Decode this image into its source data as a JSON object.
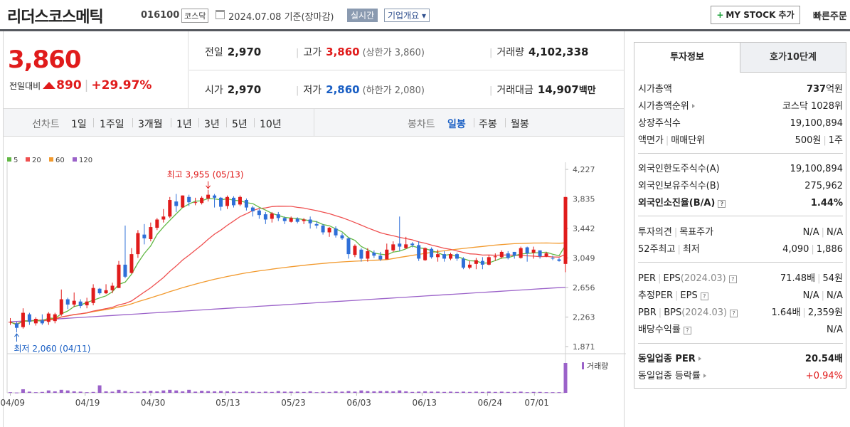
{
  "header": {
    "name": "리더스코스메틱",
    "code": "016100",
    "market": "코스닥",
    "date": "2024.07.08 기준(장마감)",
    "realtime": "실시간",
    "corp_info": "기업개요",
    "corp_info_arrow": "▾",
    "mystock_plus": "+",
    "mystock": "MY STOCK 추가",
    "quick_order": "빠른주문"
  },
  "quote": {
    "price": "3,860",
    "change_label": "전일대비",
    "change": "890",
    "change_rate": "+29.97%",
    "sep": "|"
  },
  "stats": {
    "prev": {
      "label": "전일",
      "value": "2,970"
    },
    "open": {
      "label": "시가",
      "value": "2,970"
    },
    "high": {
      "label": "고가",
      "value": "3,860",
      "sub": "(상한가 3,860)"
    },
    "low": {
      "label": "저가",
      "value": "2,860",
      "sub": "(하한가 2,080)"
    },
    "volume": {
      "label": "거래량",
      "value": "4,102,338"
    },
    "amount": {
      "label": "거래대금",
      "value": "14,907",
      "unit": "백만"
    }
  },
  "line_tabs": {
    "label": "선차트",
    "items": [
      "1일",
      "1주일",
      "3개월",
      "1년",
      "3년",
      "5년",
      "10년"
    ]
  },
  "candle_tabs": {
    "label": "봉차트",
    "items": [
      "일봉",
      "주봉",
      "월봉"
    ],
    "active": "일봉"
  },
  "chart_data": {
    "type": "candlestick",
    "legend": [
      {
        "name": "5",
        "color": "#62b845"
      },
      {
        "name": "20",
        "color": "#ef5050"
      },
      {
        "name": "60",
        "color": "#f29a2e"
      },
      {
        "name": "120",
        "color": "#9b62c9"
      }
    ],
    "y_ticks": [
      "4,227",
      "3,835",
      "3,442",
      "3,049",
      "2,656",
      "2,263",
      "1,871"
    ],
    "ylim": [
      1871,
      4227
    ],
    "x_ticks": [
      "04/09",
      "04/19",
      "04/30",
      "05/13",
      "05/23",
      "06/03",
      "06/13",
      "06/24",
      "07/01"
    ],
    "high_annotation": "최고 3,955 (05/13)",
    "low_annotation": "최저 2,060 (04/11)",
    "volume_label": "거래량",
    "colors": {
      "up": "#e01b1b",
      "down": "#2f6fd8"
    },
    "candles": [
      [
        2200,
        2200,
        2160,
        2250
      ],
      [
        2180,
        2120,
        2060,
        2200
      ],
      [
        2130,
        2320,
        2110,
        2380
      ],
      [
        2300,
        2200,
        2160,
        2320
      ],
      [
        2180,
        2240,
        2150,
        2260
      ],
      [
        2220,
        2180,
        2160,
        2300
      ],
      [
        2200,
        2310,
        2160,
        2330
      ],
      [
        2210,
        2300,
        2180,
        2320
      ],
      [
        2300,
        2500,
        2280,
        2630
      ],
      [
        2500,
        2430,
        2370,
        2520
      ],
      [
        2430,
        2480,
        2400,
        2590
      ],
      [
        2470,
        2410,
        2380,
        2500
      ],
      [
        2420,
        2470,
        2380,
        2520
      ],
      [
        2450,
        2650,
        2420,
        2700
      ],
      [
        2640,
        2580,
        2560,
        2650
      ],
      [
        2580,
        2620,
        2570,
        2700
      ],
      [
        2620,
        2680,
        2580,
        2720
      ],
      [
        2650,
        2960,
        2650,
        3010
      ],
      [
        2960,
        2800,
        2780,
        3480
      ],
      [
        2850,
        3100,
        2840,
        3180
      ],
      [
        3100,
        3380,
        3050,
        3420
      ],
      [
        3360,
        3310,
        3230,
        3500
      ],
      [
        3300,
        3460,
        3270,
        3520
      ],
      [
        3450,
        3560,
        3420,
        3580
      ],
      [
        3560,
        3600,
        3520,
        3700
      ],
      [
        3600,
        3820,
        3580,
        3860
      ],
      [
        3800,
        3740,
        3660,
        3900
      ],
      [
        3720,
        3880,
        3720,
        3880
      ],
      [
        3860,
        3790,
        3740,
        3890
      ],
      [
        3790,
        3790,
        3750,
        3850
      ],
      [
        3780,
        3850,
        3760,
        3870
      ],
      [
        3840,
        3890,
        3800,
        3955
      ],
      [
        3880,
        3850,
        3720,
        3900
      ],
      [
        3850,
        3730,
        3680,
        3860
      ],
      [
        3740,
        3860,
        3700,
        3880
      ],
      [
        3850,
        3750,
        3720,
        3870
      ],
      [
        3760,
        3860,
        3740,
        3880
      ],
      [
        3820,
        3720,
        3680,
        3840
      ],
      [
        3720,
        3670,
        3600,
        3740
      ],
      [
        3680,
        3620,
        3570,
        3700
      ],
      [
        3630,
        3560,
        3500,
        3660
      ],
      [
        3570,
        3640,
        3520,
        3660
      ],
      [
        3630,
        3580,
        3540,
        3660
      ],
      [
        3580,
        3540,
        3500,
        3600
      ],
      [
        3530,
        3580,
        3520,
        3600
      ],
      [
        3570,
        3530,
        3510,
        3590
      ],
      [
        3540,
        3560,
        3500,
        3580
      ],
      [
        3560,
        3510,
        3440,
        3600
      ],
      [
        3500,
        3480,
        3440,
        3540
      ],
      [
        3480,
        3390,
        3360,
        3500
      ],
      [
        3390,
        3450,
        3330,
        3460
      ],
      [
        3440,
        3350,
        3320,
        3470
      ],
      [
        3350,
        3310,
        3290,
        3380
      ],
      [
        3310,
        3100,
        3040,
        3320
      ],
      [
        3090,
        3210,
        3060,
        3230
      ],
      [
        3160,
        3040,
        3000,
        3180
      ],
      [
        3040,
        3140,
        3000,
        3180
      ],
      [
        3120,
        3080,
        3050,
        3150
      ],
      [
        3080,
        3030,
        3010,
        3130
      ],
      [
        3030,
        3160,
        3030,
        3240
      ],
      [
        3150,
        3230,
        3130,
        3270
      ],
      [
        3240,
        3200,
        3140,
        3600
      ],
      [
        3180,
        3230,
        3170,
        3330
      ],
      [
        3240,
        3220,
        3190,
        3260
      ],
      [
        3220,
        3040,
        3010,
        3270
      ],
      [
        3020,
        3180,
        3010,
        3190
      ],
      [
        3170,
        3060,
        3040,
        3190
      ],
      [
        3060,
        3100,
        3000,
        3160
      ],
      [
        3100,
        3040,
        3000,
        3140
      ],
      [
        3040,
        3100,
        3020,
        3120
      ],
      [
        3100,
        3040,
        3010,
        3120
      ],
      [
        3040,
        2920,
        2900,
        3060
      ],
      [
        2920,
        2960,
        2900,
        3010
      ],
      [
        2970,
        3020,
        2900,
        3050
      ],
      [
        3010,
        2960,
        2900,
        3060
      ],
      [
        2960,
        3060,
        2950,
        3090
      ],
      [
        3060,
        3070,
        3010,
        3110
      ],
      [
        3060,
        3130,
        3040,
        3150
      ],
      [
        3110,
        3050,
        3030,
        3140
      ],
      [
        3130,
        3080,
        3040,
        3130
      ],
      [
        3050,
        3180,
        3040,
        3200
      ],
      [
        3190,
        3110,
        3000,
        3200
      ],
      [
        3120,
        3160,
        3040,
        3200
      ],
      [
        3150,
        3070,
        3040,
        3150
      ],
      [
        3070,
        3110,
        3060,
        3130
      ],
      [
        3050,
        3040,
        3020,
        3080
      ],
      [
        3030,
        3010,
        3000,
        3050
      ],
      [
        2970,
        3860,
        2860,
        3860
      ]
    ],
    "volume": [
      2,
      1,
      12,
      4,
      2,
      3,
      8,
      5,
      10,
      8,
      5,
      4,
      2,
      3,
      25,
      5,
      4,
      10,
      6,
      3,
      4,
      5,
      7,
      5,
      8,
      10,
      8,
      5,
      10,
      4,
      7,
      6,
      5,
      6,
      5,
      4,
      3,
      5,
      4,
      3,
      4,
      3,
      6,
      4,
      4,
      4,
      3,
      5,
      2,
      4,
      3,
      5,
      4,
      6,
      4,
      8,
      6,
      5,
      6,
      6,
      5,
      8,
      5,
      3,
      4,
      5,
      4,
      4,
      3,
      4,
      3,
      4,
      3,
      4,
      3,
      4,
      3,
      4,
      3,
      3,
      4,
      2,
      3,
      3,
      2,
      2,
      2,
      100
    ],
    "ma5_color": "#62b845",
    "ma20_color": "#ef5050",
    "ma60_color": "#f29a2e",
    "ma120_color": "#9b62c9"
  },
  "invest": {
    "tab_on": "투자정보",
    "tab_off": "호가10단계",
    "market_cap": {
      "label": "시가총액",
      "value": "737",
      "unit": "억원"
    },
    "cap_rank": {
      "label": "시가총액순위",
      "value": "코스닥 1028위"
    },
    "shares": {
      "label": "상장주식수",
      "value": "19,100,894"
    },
    "par": {
      "label1": "액면가",
      "label2": "매매단위",
      "value1": "500원",
      "value2": "1주"
    },
    "foreign_limit": {
      "label": "외국인한도주식수(A)",
      "value": "19,100,894"
    },
    "foreign_hold": {
      "label": "외국인보유주식수(B)",
      "value": "275,962"
    },
    "foreign_rate": {
      "label": "외국인소진율(B/A)",
      "value": "1.44%"
    },
    "opinion": {
      "label1": "투자의견",
      "label2": "목표주가",
      "value1": "N/A",
      "value2": "N/A"
    },
    "w52": {
      "label1": "52주최고",
      "label2": "최저",
      "value1": "4,090",
      "value2": "1,886"
    },
    "per": {
      "label1": "PER",
      "label2": "EPS",
      "label2_paren": "(2024.03)",
      "value1": "71.48배",
      "value2": "54원"
    },
    "est_per": {
      "label1": "추정PER",
      "label2": "EPS",
      "value1": "N/A",
      "value2": "N/A"
    },
    "pbr": {
      "label1": "PBR",
      "label2": "BPS",
      "label2_paren": "(2024.03)",
      "value1": "1.64배",
      "value2": "2,359원"
    },
    "dividend": {
      "label": "배당수익률",
      "value": "N/A"
    },
    "sector_per": {
      "label": "동일업종 PER",
      "value": "20.54배"
    },
    "sector_rate": {
      "label": "동일업종 등락률",
      "value": "+0.94%"
    },
    "pipe": "|",
    "help": "?"
  }
}
